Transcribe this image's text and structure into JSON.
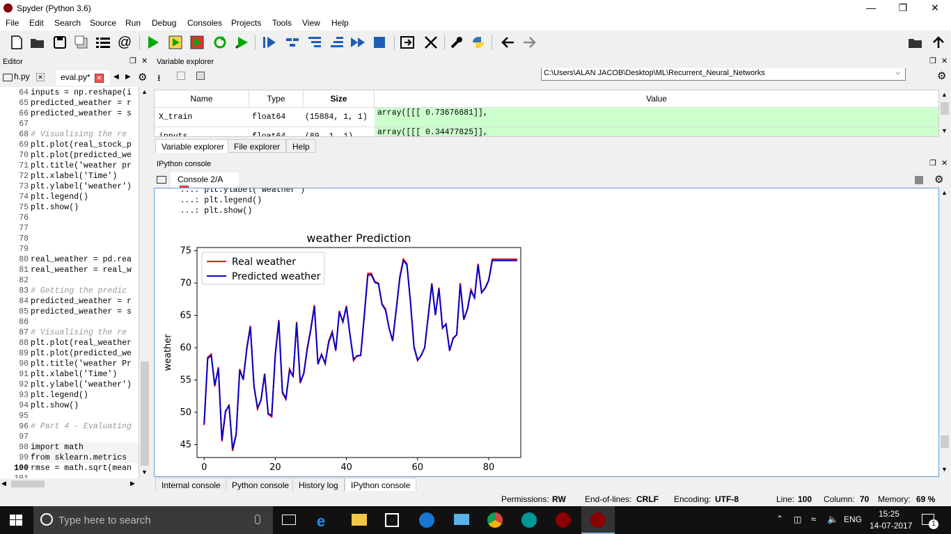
{
  "window": {
    "title": "Spyder (Python 3.6)"
  },
  "menu": [
    "File",
    "Edit",
    "Search",
    "Source",
    "Run",
    "Debug",
    "Consoles",
    "Projects",
    "Tools",
    "View",
    "Help"
  ],
  "path": {
    "value": "C:\\Users\\ALAN JACOB\\Desktop\\ML\\Recurrent_Neural_Networks"
  },
  "editor": {
    "header": "Editor",
    "tabs": [
      "ɦ.py",
      "eval.py*"
    ],
    "lines": [
      {
        "n": "64",
        "t": "inputs = np.reshape(i"
      },
      {
        "n": "65",
        "t": "predicted_weather = r"
      },
      {
        "n": "66",
        "t": "predicted_weather = s"
      },
      {
        "n": "67",
        "t": ""
      },
      {
        "n": "68",
        "t": "# Visualising the re"
      },
      {
        "n": "69",
        "t": "plt.plot(real_stock_p"
      },
      {
        "n": "70",
        "t": "plt.plot(predicted_we"
      },
      {
        "n": "71",
        "t": "plt.title('weather pr"
      },
      {
        "n": "72",
        "t": "plt.xlabel('Time')"
      },
      {
        "n": "73",
        "t": "plt.ylabel('weather')"
      },
      {
        "n": "74",
        "t": "plt.legend()"
      },
      {
        "n": "75",
        "t": "plt.show()"
      },
      {
        "n": "76",
        "t": ""
      },
      {
        "n": "77",
        "t": ""
      },
      {
        "n": "78",
        "t": ""
      },
      {
        "n": "79",
        "t": ""
      },
      {
        "n": "80",
        "t": "real_weather = pd.rea"
      },
      {
        "n": "81",
        "t": "real_weather = real_w"
      },
      {
        "n": "82",
        "t": ""
      },
      {
        "n": "83",
        "t": "# Getting the predic"
      },
      {
        "n": "84",
        "t": "predicted_weather = r"
      },
      {
        "n": "85",
        "t": "predicted_weather = s"
      },
      {
        "n": "86",
        "t": ""
      },
      {
        "n": "87",
        "t": "# Visualising the re"
      },
      {
        "n": "88",
        "t": "plt.plot(real_weather"
      },
      {
        "n": "89",
        "t": "plt.plot(predicted_we"
      },
      {
        "n": "90",
        "t": "plt.title('weather Pr"
      },
      {
        "n": "91",
        "t": "plt.xlabel('Time')"
      },
      {
        "n": "92",
        "t": "plt.ylabel('weather')"
      },
      {
        "n": "93",
        "t": "plt.legend()"
      },
      {
        "n": "94",
        "t": "plt.show()"
      },
      {
        "n": "95",
        "t": ""
      },
      {
        "n": "96",
        "t": "# Part 4 - Evaluating"
      },
      {
        "n": "97",
        "t": ""
      },
      {
        "n": "98",
        "t": "import math"
      },
      {
        "n": "99",
        "t": "from sklearn.metrics"
      },
      {
        "n": "100",
        "t": "rmse = math.sqrt(mean"
      },
      {
        "n": "101",
        "t": ""
      }
    ]
  },
  "varexplorer": {
    "header": "Variable explorer",
    "columns": [
      "Name",
      "Type",
      "Size",
      "Value"
    ],
    "rows": [
      {
        "name": "X_train",
        "type": "float64",
        "size": "(15884, 1, 1)",
        "value": "array([[[ 0.73676681]],"
      },
      {
        "name": "inputs",
        "type": "float64",
        "size": "(89, 1, 1)",
        "value": "array([[[ 0.34477825]],"
      }
    ],
    "tabs": [
      "Variable explorer",
      "File explorer",
      "Help"
    ]
  },
  "console": {
    "header": "IPython console",
    "tab": "Console 2/A",
    "lines": [
      "   ...: plt.ylabel('weather')",
      "   ...: plt.legend()",
      "   ...: plt.show()"
    ],
    "bottom_tabs": [
      "Internal console",
      "Python console",
      "History log",
      "IPython console"
    ]
  },
  "chart_data": {
    "type": "line",
    "title": "weather Prediction",
    "xlabel": "",
    "ylabel": "weather",
    "xlim": [
      -2,
      89
    ],
    "ylim": [
      43,
      75.5
    ],
    "xticks": [
      0,
      20,
      40,
      60,
      80
    ],
    "yticks": [
      45,
      50,
      55,
      60,
      65,
      70,
      75
    ],
    "legend_position": "top-left",
    "series": [
      {
        "name": "Real weather",
        "color": "#ff0000",
        "values": [
          48,
          58.5,
          59,
          54,
          57,
          45.5,
          50,
          51.2,
          44,
          46.5,
          56.7,
          55,
          60,
          63.4,
          54,
          50.5,
          52,
          56,
          49.7,
          49.3,
          59,
          64.3,
          53,
          52,
          56.7,
          55.5,
          64,
          54.5,
          56,
          60,
          63,
          66.6,
          57.4,
          59,
          57.5,
          61,
          62.5,
          59.5,
          65.7,
          64,
          66.5,
          62,
          58,
          58.8,
          58.8,
          65,
          71.5,
          71.5,
          70.2,
          70,
          66.8,
          66,
          63,
          61,
          66,
          71,
          73.7,
          73,
          67,
          60,
          58,
          58.8,
          60,
          65,
          70,
          65,
          69.3,
          63,
          63.7,
          59.5,
          61.5,
          62,
          70,
          64.3,
          66,
          69,
          67.7,
          73,
          68.5,
          69.3,
          70.5,
          73.7,
          73.7,
          73.7,
          73.7,
          73.7,
          73.7,
          73.7,
          73.7
        ]
      },
      {
        "name": "Predicted weather",
        "color": "#0000cc",
        "values": [
          48.2,
          58.3,
          58.8,
          54.2,
          56.8,
          45.7,
          50.2,
          51,
          44.3,
          46.6,
          56.5,
          55.1,
          59.8,
          63.2,
          54.1,
          50.7,
          51.9,
          55.9,
          49.8,
          49.5,
          58.8,
          64.1,
          53.2,
          52.1,
          56.5,
          55.6,
          63.8,
          54.7,
          56,
          59.8,
          62.8,
          66.4,
          57.5,
          58.9,
          57.6,
          60.8,
          62.3,
          59.6,
          65.5,
          64,
          66.3,
          62,
          58.2,
          58.7,
          58.8,
          64.8,
          71.2,
          71.3,
          70.1,
          69.9,
          66.7,
          65.8,
          63,
          61.1,
          65.9,
          70.8,
          73.5,
          72.8,
          67.1,
          60.2,
          58.1,
          58.8,
          60,
          64.8,
          69.8,
          65.1,
          69.1,
          63.1,
          63.6,
          59.6,
          61.4,
          62,
          69.8,
          64.4,
          65.9,
          68.8,
          67.7,
          72.8,
          68.5,
          69.2,
          70.4,
          73.5,
          73.5,
          73.5,
          73.5,
          73.5,
          73.5,
          73.5,
          73.5
        ]
      }
    ]
  },
  "status": {
    "permissions_label": "Permissions:",
    "permissions": "RW",
    "eol_label": "End-of-lines:",
    "eol": "CRLF",
    "encoding_label": "Encoding:",
    "encoding": "UTF-8",
    "line_label": "Line:",
    "line": "100",
    "column_label": "Column:",
    "column": "70",
    "memory_label": "Memory:",
    "memory": "69 %"
  },
  "taskbar": {
    "search_placeholder": "Type here to search",
    "lang": "ENG",
    "time": "15:25",
    "date": "14-07-2017",
    "notif": "1"
  }
}
